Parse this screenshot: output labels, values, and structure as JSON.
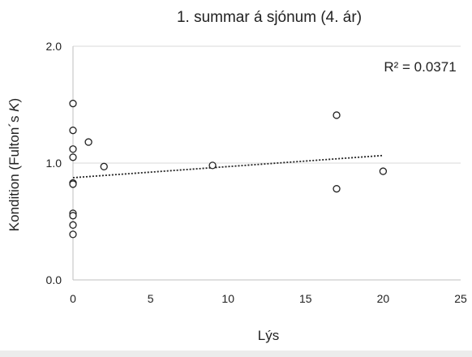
{
  "chart_data": {
    "type": "scatter",
    "title": "1. summar á sjónum (4. ár)",
    "xlabel": "Lýs",
    "ylabel_prefix": "Kondition (Fulton´s ",
    "ylabel_italic": "K",
    "ylabel_suffix": ")",
    "xlim": [
      0,
      25
    ],
    "ylim": [
      0.0,
      2.0
    ],
    "x_ticks": [
      0,
      5,
      10,
      15,
      20,
      25
    ],
    "x_tick_labels": [
      "0",
      "5",
      "10",
      "15",
      "20",
      "25"
    ],
    "y_ticks": [
      0.0,
      1.0,
      2.0
    ],
    "y_tick_labels": [
      "0.0",
      "1.0",
      "2.0"
    ],
    "grid": "horizontal",
    "annotation": "R² = 0.0371",
    "points": [
      {
        "x": 0,
        "y": 1.51
      },
      {
        "x": 0,
        "y": 1.28
      },
      {
        "x": 0,
        "y": 1.12
      },
      {
        "x": 0,
        "y": 1.05
      },
      {
        "x": 0,
        "y": 0.83
      },
      {
        "x": 0,
        "y": 0.82
      },
      {
        "x": 0,
        "y": 0.57
      },
      {
        "x": 0,
        "y": 0.55
      },
      {
        "x": 0,
        "y": 0.47
      },
      {
        "x": 0,
        "y": 0.39
      },
      {
        "x": 1,
        "y": 1.18
      },
      {
        "x": 2,
        "y": 0.97
      },
      {
        "x": 9,
        "y": 0.98
      },
      {
        "x": 17,
        "y": 1.41
      },
      {
        "x": 17,
        "y": 0.78
      },
      {
        "x": 20,
        "y": 0.93
      }
    ],
    "trendline": {
      "type": "linear",
      "x": [
        0,
        20
      ],
      "y": [
        0.875,
        1.065
      ]
    },
    "colors": {
      "marker_stroke": "#222222",
      "trendline": "#222222",
      "grid": "#d9d9d9",
      "axis": "#bfbfbf"
    }
  }
}
